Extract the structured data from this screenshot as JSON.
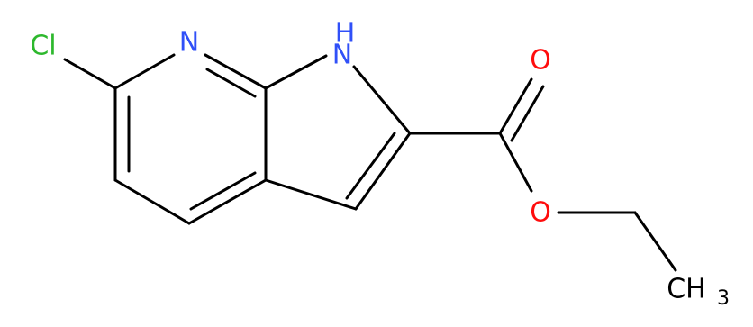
{
  "atoms": [
    {
      "label": "Cl"
    },
    {
      "label": "N"
    },
    {
      "label": "N"
    },
    {
      "label": "H"
    },
    {
      "label": "O"
    },
    {
      "label": "O"
    },
    {
      "label": "CH",
      "subscript": "3"
    }
  ]
}
